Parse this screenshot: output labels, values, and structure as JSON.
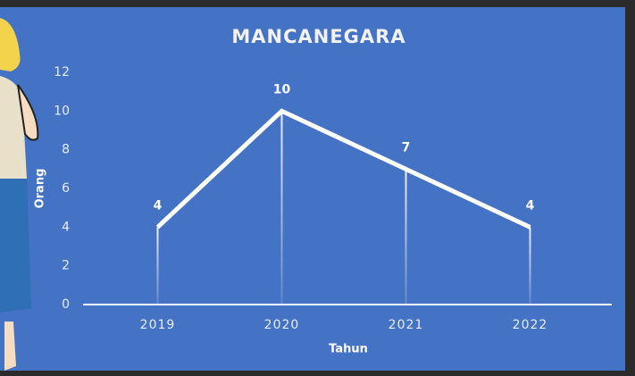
{
  "chart_data": {
    "type": "line",
    "title": "MANCANEGARA",
    "x_label": "Tahun",
    "y_label": "Orang",
    "categories": [
      "2019",
      "2020",
      "2021",
      "2022"
    ],
    "values": [
      4,
      10,
      7,
      4
    ],
    "color": "#ffffff",
    "ylim": [
      0,
      12
    ],
    "yticks": [
      0,
      2,
      4,
      6,
      8,
      10,
      12
    ],
    "grid": false,
    "drop_lines": true
  }
}
